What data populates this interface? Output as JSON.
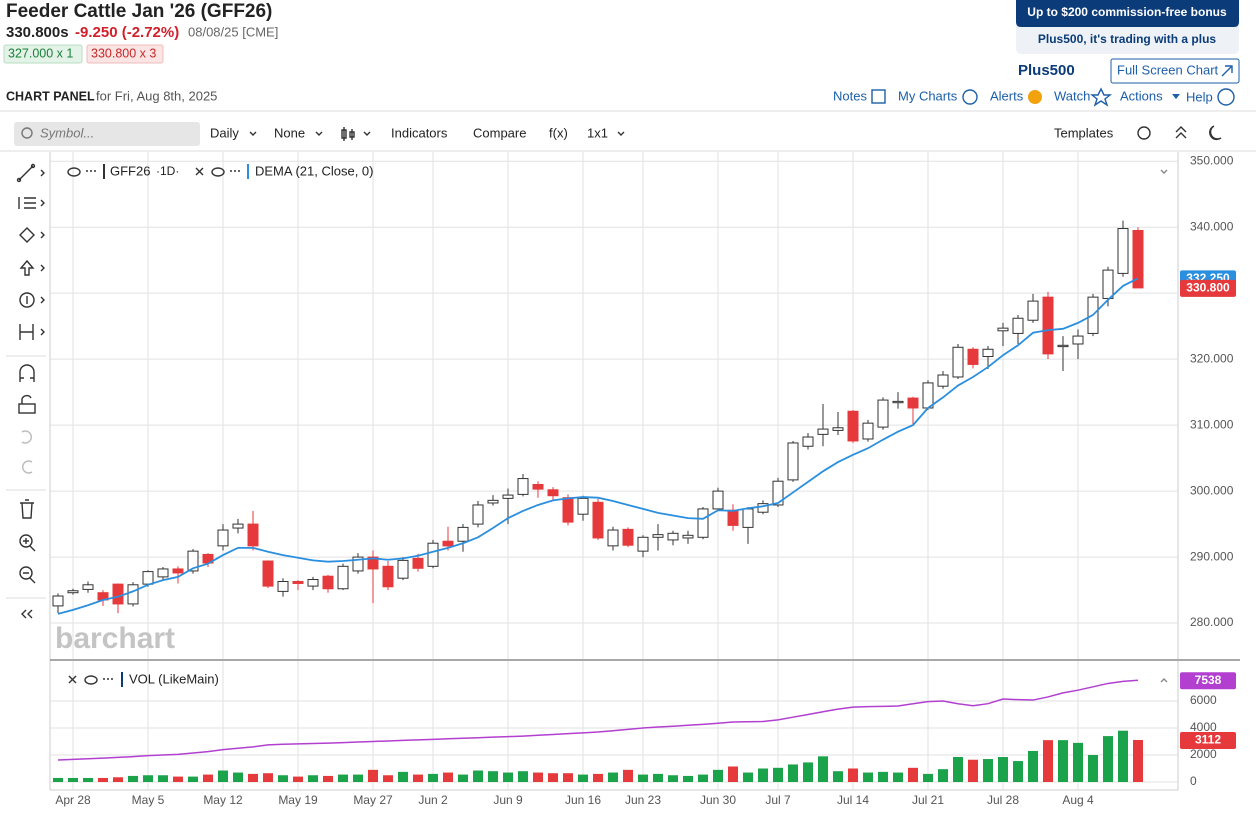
{
  "header": {
    "title": "Feeder Cattle Jan '26 (GFF26)",
    "price": "330.800s",
    "change": "-9.250 (-2.72%)",
    "date": "08/08/25 [CME]",
    "bid": "327.000 x 1",
    "ask": "330.800 x 3"
  },
  "ad": {
    "line1": "Up to $200 commission-free bonus",
    "line2": "Plus500, it's trading with a plus",
    "logo": "Plus500"
  },
  "full_screen": "Full Screen Chart",
  "panel": {
    "label": "CHART PANEL",
    "date": "for Fri, Aug 8th, 2025"
  },
  "panel_links": [
    "Notes",
    "My Charts",
    "Alerts",
    "Watch",
    "Actions",
    "Help"
  ],
  "toolbar": {
    "search": "Symbol...",
    "items": [
      "Daily",
      "None",
      "Indicators",
      "Compare",
      "f(x)",
      "1x1"
    ],
    "templates": "Templates"
  },
  "watermark": "barchart",
  "chart_data": [
    {
      "type": "candlestick",
      "symbol": "GFF26",
      "interval": "·1D·",
      "categories": [
        null,
        "Apr 28",
        null,
        null,
        null,
        null,
        "May 5",
        null,
        null,
        null,
        null,
        "May 12",
        null,
        null,
        null,
        null,
        "May 19",
        null,
        null,
        null,
        null,
        "May 27",
        null,
        null,
        null,
        "Jun 2",
        null,
        null,
        null,
        null,
        "Jun 9",
        null,
        null,
        null,
        null,
        "Jun 16",
        null,
        null,
        null,
        "Jun 23",
        null,
        null,
        null,
        null,
        "Jun 30",
        null,
        null,
        null,
        "Jul 7",
        null,
        null,
        null,
        null,
        "Jul 14",
        null,
        null,
        null,
        null,
        "Jul 21",
        null,
        null,
        null,
        null,
        "Jul 28",
        null,
        null,
        null,
        null,
        "Aug 4",
        null,
        null,
        null,
        null
      ],
      "open": [
        282.6,
        284.6,
        285.1,
        284.6,
        285.9,
        282.9,
        285.9,
        287,
        288.2,
        287.9,
        290.4,
        291.7,
        294.4,
        295,
        289.4,
        284.8,
        286.3,
        285.6,
        287.1,
        285.2,
        287.9,
        290,
        288.6,
        286.8,
        289.8,
        288.6,
        292.4,
        292.4,
        295,
        298.2,
        298.9,
        299.5,
        301,
        300.2,
        299,
        296.5,
        298.3,
        291.7,
        294.2,
        290.9,
        293,
        292.6,
        292.9,
        293,
        297.3,
        297.1,
        294.5,
        296.8,
        297.9,
        301.7,
        306.8,
        308.6,
        309.2,
        312.1,
        307.9,
        309.7,
        313.4,
        314.1,
        312.6,
        315.9,
        317.3,
        321.5,
        320.4,
        324.3,
        323.9,
        325.9,
        329.4,
        321.9,
        322.3,
        323.9,
        329.2,
        333,
        339.5
      ],
      "high": [
        284.5,
        285.2,
        286.3,
        285,
        286,
        286.2,
        288,
        288.5,
        288.6,
        291.2,
        290.6,
        295,
        295.8,
        297,
        289.5,
        286.8,
        286.5,
        287,
        287.3,
        289,
        290.6,
        291,
        289.4,
        290,
        290.5,
        292.6,
        294.6,
        295,
        298.5,
        299.4,
        300.4,
        302.6,
        301.5,
        300.6,
        299.5,
        299.3,
        298.8,
        294.6,
        294.5,
        293.3,
        295,
        294,
        294,
        297.6,
        300.5,
        298,
        297.6,
        298.6,
        302,
        307.6,
        308.8,
        313.2,
        312,
        312.3,
        310.8,
        314.2,
        315,
        314.3,
        316.8,
        318.2,
        322.3,
        321.8,
        322,
        325.5,
        326.7,
        329.9,
        330.2,
        323.5,
        324.5,
        329.9,
        334,
        341,
        340
      ],
      "low": [
        281.5,
        284.3,
        284.6,
        282.6,
        281.5,
        282.5,
        285.5,
        286.5,
        286,
        287.5,
        288.5,
        291,
        293.6,
        291,
        285.3,
        284,
        285,
        285,
        284.6,
        285,
        287.5,
        283,
        285,
        286.5,
        287.8,
        288.3,
        291,
        290.8,
        294.5,
        297.8,
        295,
        299.2,
        299,
        298.5,
        294.8,
        295.5,
        292.6,
        291,
        291.5,
        290,
        291,
        291.8,
        292,
        292.7,
        297,
        294,
        292,
        296.5,
        297.6,
        301.4,
        306.3,
        306.8,
        308.5,
        307.3,
        307.5,
        309.3,
        312.5,
        310,
        312.3,
        315.5,
        317,
        318.6,
        318.5,
        322,
        322.3,
        325.5,
        320,
        318.2,
        320,
        323.5,
        328,
        332.5,
        330.8
      ],
      "close": [
        284.1,
        284.9,
        285.8,
        283.5,
        282.9,
        285.8,
        287.8,
        288.2,
        287.6,
        290.9,
        289.1,
        294.1,
        295,
        291.7,
        285.6,
        286.3,
        286,
        286.6,
        285.2,
        288.6,
        290,
        288.2,
        285.5,
        289.5,
        288.3,
        292.1,
        291.7,
        294.5,
        297.9,
        298.6,
        299.4,
        301.9,
        300.3,
        299.3,
        295.3,
        298.9,
        292.9,
        294.1,
        291.8,
        293,
        293.4,
        293.6,
        293.3,
        297.3,
        300,
        294.8,
        297.3,
        298.1,
        301.5,
        307.3,
        308.2,
        309.4,
        309.6,
        307.6,
        310.3,
        313.8,
        313.6,
        312.6,
        316.4,
        317.6,
        321.8,
        319.2,
        321.5,
        324.7,
        326.2,
        328.8,
        320.8,
        322.1,
        323.5,
        329.4,
        333.5,
        339.8,
        330.8
      ],
      "up_color": "#ffffff",
      "down_color": "#e5393b",
      "last_label": "330.800",
      "series": [
        {
          "name": "DEMA (21, Close, 0)",
          "color": "#2a8fde",
          "last_label": "332.250",
          "values": [
            281.4,
            282.0,
            282.7,
            283.5,
            284.0,
            284.8,
            285.8,
            286.5,
            287.0,
            288.3,
            289.0,
            290.3,
            291.4,
            291.4,
            290.8,
            290.3,
            289.9,
            289.5,
            289.3,
            289.4,
            289.6,
            289.8,
            289.6,
            289.8,
            290.2,
            290.8,
            291.4,
            292.1,
            293.0,
            294.4,
            295.9,
            297.0,
            297.9,
            298.6,
            298.9,
            299.1,
            299.0,
            298.5,
            297.9,
            297.3,
            296.7,
            296.3,
            295.9,
            295.8,
            297.1,
            297.0,
            297.4,
            297.7,
            298.2,
            299.8,
            301.4,
            303.0,
            304.4,
            305.5,
            306.5,
            307.8,
            309.0,
            310.0,
            312.6,
            314.2,
            316.0,
            317.3,
            318.8,
            320.6,
            322.1,
            324.0,
            324.4,
            324.6,
            325.5,
            326.7,
            329.0,
            331.1,
            332.25
          ]
        }
      ],
      "ylim": [
        274.4,
        351.4
      ],
      "yticks": [
        {
          "value": 280,
          "label": "280.000"
        },
        {
          "value": 290,
          "label": "290.000"
        },
        {
          "value": 300,
          "label": "300.000"
        },
        {
          "value": 310,
          "label": "310.000"
        },
        {
          "value": 320,
          "label": "320.000"
        },
        {
          "value": 330,
          "label": "330.000"
        },
        {
          "value": 340,
          "label": "340.000"
        },
        {
          "value": 350,
          "label": "350.000"
        }
      ],
      "grid": true
    },
    {
      "type": "bar",
      "up_color": "#1aa34a",
      "down_color": "#e5393b",
      "series": [
        {
          "name": "VOL (LikeMain)",
          "last_label": "3112",
          "values": [
            300,
            300,
            300,
            300,
            350,
            450,
            500,
            500,
            400,
            400,
            550,
            850,
            700,
            600,
            650,
            500,
            400,
            500,
            450,
            550,
            550,
            900,
            500,
            750,
            550,
            600,
            700,
            550,
            850,
            800,
            700,
            800,
            700,
            650,
            650,
            550,
            600,
            700,
            900,
            550,
            600,
            500,
            450,
            550,
            900,
            1150,
            700,
            1000,
            1050,
            1300,
            1450,
            1900,
            800,
            1000,
            700,
            750,
            700,
            1050,
            600,
            950,
            1850,
            1650,
            1700,
            1850,
            1550,
            2300,
            3100,
            3100,
            2900,
            2000,
            3400,
            3800,
            3112
          ]
        },
        {
          "style": "line",
          "color": "#b23fd0",
          "last_label": "7538",
          "values": [
            1630,
            1680,
            1720,
            1770,
            1820,
            1880,
            1950,
            2000,
            2050,
            2150,
            2250,
            2400,
            2500,
            2600,
            2750,
            2800,
            2820,
            2850,
            2880,
            2920,
            2960,
            3000,
            3040,
            3080,
            3120,
            3160,
            3200,
            3240,
            3280,
            3320,
            3360,
            3400,
            3460,
            3520,
            3580,
            3640,
            3700,
            3800,
            3900,
            4000,
            4070,
            4130,
            4200,
            4270,
            4350,
            4440,
            4460,
            4480,
            4600,
            4800,
            5000,
            5200,
            5400,
            5550,
            5580,
            5600,
            5630,
            5800,
            5950,
            6000,
            5800,
            5650,
            5800,
            6150,
            6100,
            6070,
            6300,
            6600,
            6800,
            7050,
            7300,
            7450,
            7538
          ]
        }
      ],
      "ylim": [
        -593,
        8889
      ],
      "yticks": [
        0,
        2000,
        4000,
        6000
      ],
      "grid": true
    }
  ]
}
